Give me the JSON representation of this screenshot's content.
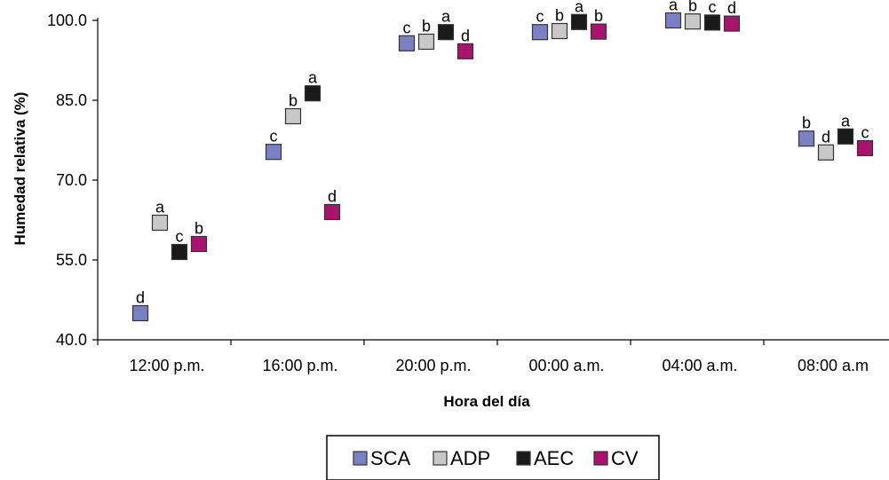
{
  "chart_data": {
    "type": "scatter",
    "title": "",
    "xlabel": "Hora del día",
    "ylabel": "Humedad relativa (%)",
    "ylim": [
      40.0,
      100.0
    ],
    "yticks": [
      "40.0",
      "55.0",
      "70.0",
      "85.0",
      "100.0"
    ],
    "categories": [
      "12:00 p.m.",
      "16:00 p.m.",
      "20:00 p.m.",
      "00:00 a.m.",
      "04:00 a.m.",
      "08:00 a.m"
    ],
    "legend_position": "bottom-center",
    "series": [
      {
        "name": "SCA",
        "color": "#7b7fc4",
        "values": [
          45.0,
          75.3,
          95.7,
          97.8,
          100.0,
          77.8
        ],
        "letters": [
          "d",
          "c",
          "c",
          "c",
          "a",
          "b"
        ]
      },
      {
        "name": "ADP",
        "color": "#c8c8c8",
        "values": [
          62.0,
          82.0,
          96.0,
          98.0,
          99.8,
          75.2
        ],
        "letters": [
          "a",
          "b",
          "b",
          "b",
          "b",
          "d"
        ]
      },
      {
        "name": "AEC",
        "color": "#1a1a1a",
        "values": [
          56.5,
          86.3,
          97.8,
          99.7,
          99.6,
          78.2
        ],
        "letters": [
          "c",
          "a",
          "a",
          "a",
          "c",
          "a"
        ]
      },
      {
        "name": "CV",
        "color": "#a8136e",
        "values": [
          58.0,
          64.0,
          94.2,
          97.9,
          99.4,
          76.0
        ],
        "letters": [
          "b",
          "d",
          "d",
          "b",
          "d",
          "c"
        ]
      }
    ]
  }
}
